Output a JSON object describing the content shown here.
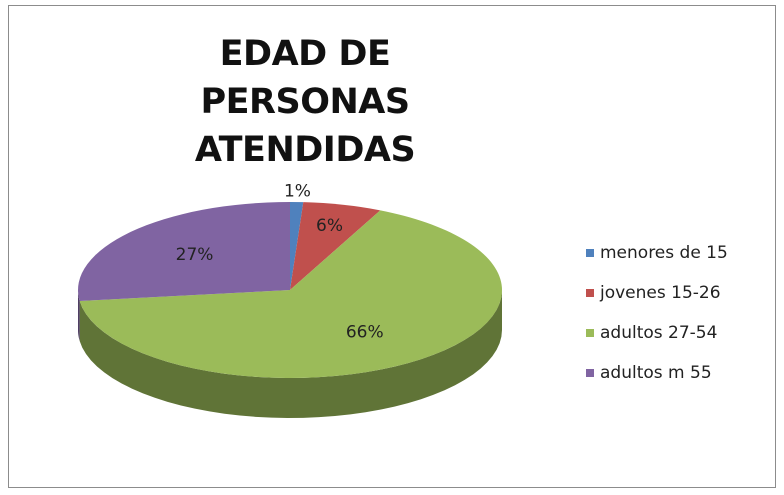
{
  "chart_data": {
    "type": "pie",
    "title": "EDAD DE PERSONAS ATENDIDAS",
    "categories": [
      "menores de 15",
      "jovenes 15-26",
      "adultos 27-54",
      "adultos m 55"
    ],
    "values": [
      1,
      6,
      66,
      27
    ],
    "value_labels": [
      "1%",
      "6%",
      "66%",
      "27%"
    ],
    "colors": [
      "#4f81bd",
      "#c0504d",
      "#9bbb59",
      "#8064a2"
    ],
    "legend": "right"
  }
}
